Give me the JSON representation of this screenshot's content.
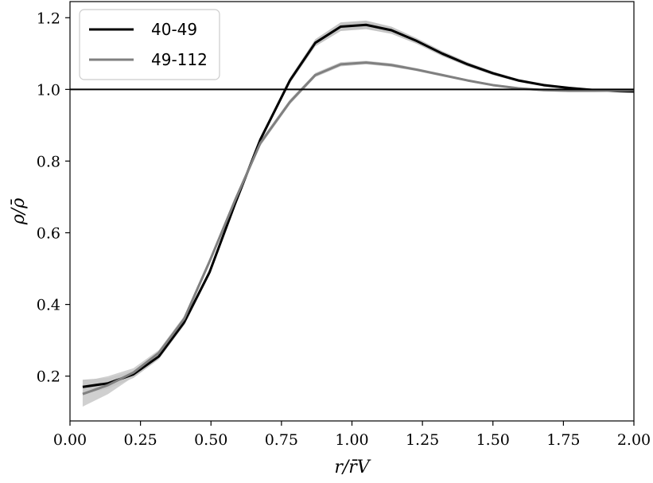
{
  "chart_data": {
    "type": "line",
    "xlabel": "r/r̄V",
    "ylabel": "ρ/ρ̄",
    "xlim": [
      0.0,
      2.0
    ],
    "ylim": [
      0.075,
      1.245
    ],
    "xticks": [
      "0.00",
      "0.25",
      "0.50",
      "0.75",
      "1.00",
      "1.25",
      "1.50",
      "1.75",
      "2.00"
    ],
    "yticks": [
      "0.2",
      "0.4",
      "0.6",
      "0.8",
      "1.0",
      "1.2"
    ],
    "reference_line": {
      "y": 1.0,
      "color": "#000000"
    },
    "legend": {
      "position": "top-left"
    },
    "series": [
      {
        "name": "40-49",
        "color": "#000000",
        "band_color": "#bbbbbb",
        "x": [
          0.045,
          0.135,
          0.225,
          0.315,
          0.405,
          0.495,
          0.585,
          0.675,
          0.78,
          0.87,
          0.96,
          1.05,
          1.14,
          1.23,
          1.32,
          1.41,
          1.5,
          1.59,
          1.68,
          1.77,
          1.86,
          1.95,
          2.0
        ],
        "y": [
          0.17,
          0.18,
          0.205,
          0.255,
          0.35,
          0.49,
          0.68,
          0.86,
          1.025,
          1.13,
          1.175,
          1.18,
          1.165,
          1.135,
          1.1,
          1.07,
          1.045,
          1.025,
          1.012,
          1.004,
          0.998,
          0.995,
          0.994
        ],
        "err": [
          0.02,
          0.015,
          0.01,
          0.008,
          0.008,
          0.008,
          0.008,
          0.008,
          0.008,
          0.01,
          0.012,
          0.012,
          0.01,
          0.008,
          0.007,
          0.006,
          0.005,
          0.004,
          0.004,
          0.003,
          0.003,
          0.003,
          0.003
        ]
      },
      {
        "name": "49-112",
        "color": "#808080",
        "band_color": "#c8c8c8",
        "x": [
          0.045,
          0.135,
          0.225,
          0.315,
          0.405,
          0.495,
          0.585,
          0.675,
          0.78,
          0.87,
          0.96,
          1.05,
          1.14,
          1.23,
          1.32,
          1.41,
          1.5,
          1.59,
          1.68,
          1.77,
          1.86,
          1.95,
          2.0
        ],
        "y": [
          0.15,
          0.175,
          0.21,
          0.265,
          0.36,
          0.52,
          0.69,
          0.85,
          0.965,
          1.04,
          1.07,
          1.075,
          1.068,
          1.055,
          1.04,
          1.025,
          1.012,
          1.003,
          0.998,
          0.996,
          0.996,
          0.997,
          0.998
        ],
        "err": [
          0.035,
          0.025,
          0.012,
          0.008,
          0.008,
          0.008,
          0.008,
          0.008,
          0.007,
          0.006,
          0.006,
          0.005,
          0.005,
          0.004,
          0.004,
          0.003,
          0.003,
          0.003,
          0.003,
          0.003,
          0.003,
          0.003,
          0.003
        ]
      }
    ]
  }
}
